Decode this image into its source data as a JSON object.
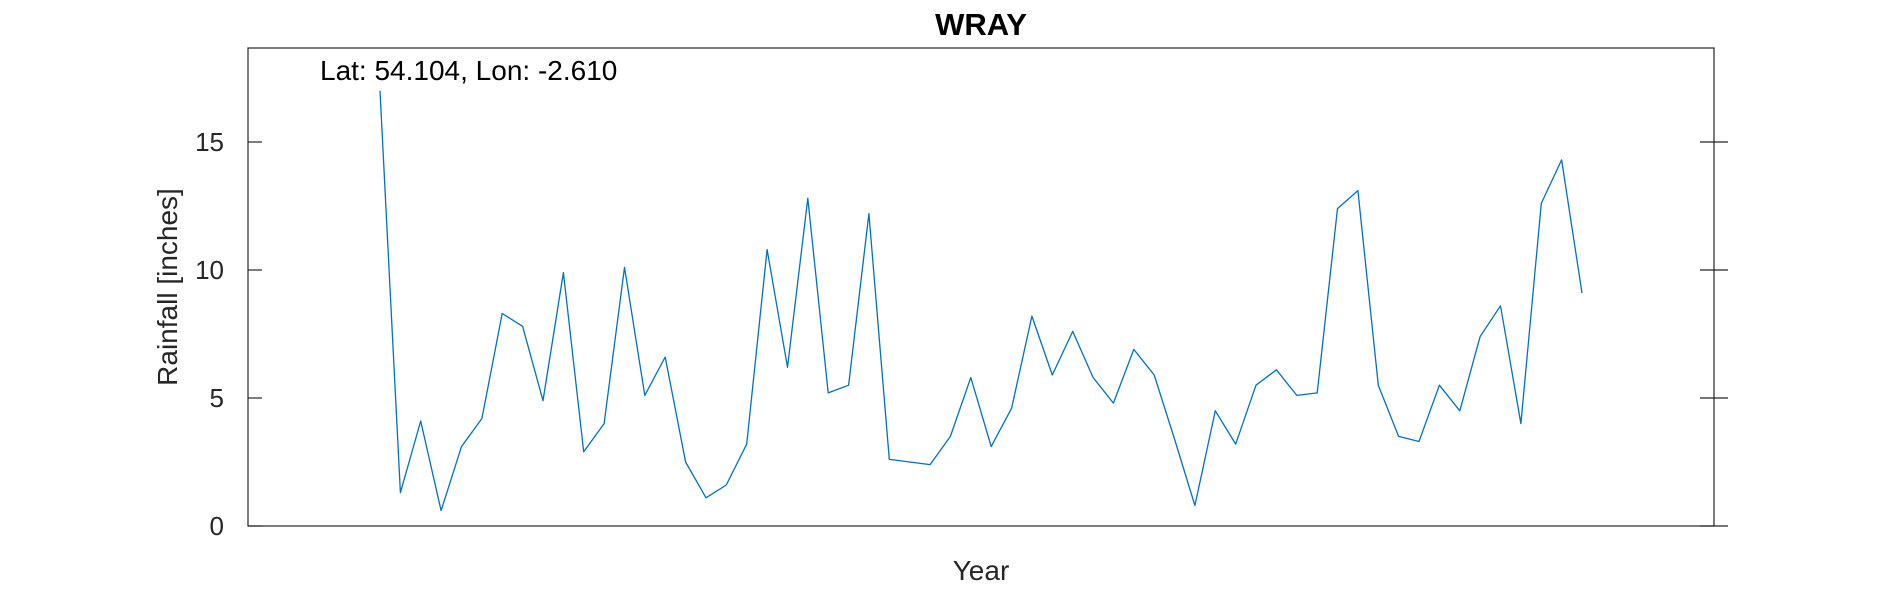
{
  "chart_data": {
    "type": "line",
    "title": "WRAY",
    "xlabel": "Year",
    "ylabel": "Rainfall [inches]",
    "annotation": "Lat: 54.104, Lon: -2.610",
    "ylim": [
      0,
      18.5
    ],
    "yticks": [
      0,
      5,
      10,
      15
    ],
    "x_tick_labels_shown": false,
    "grid": false,
    "line_color": "#0072BD",
    "series": [
      {
        "values": [
          17.0,
          1.3,
          4.1,
          0.6,
          3.1,
          4.2,
          8.3,
          7.8,
          4.9,
          9.9,
          2.9,
          4.0,
          10.1,
          5.1,
          6.6,
          2.5,
          1.1,
          1.6,
          3.2,
          10.8,
          6.2,
          12.8,
          5.2,
          5.5,
          12.2,
          2.6,
          2.5,
          2.4,
          3.5,
          5.8,
          3.1,
          4.6,
          8.2,
          5.9,
          7.6,
          5.8,
          4.8,
          6.9,
          5.9,
          3.4,
          0.8,
          4.5,
          3.2,
          5.5,
          6.1,
          5.1,
          5.2,
          12.4,
          13.1,
          5.5,
          3.5,
          3.3,
          5.5,
          4.5,
          7.4,
          8.6,
          4.0,
          12.6,
          14.3,
          9.1
        ]
      }
    ]
  }
}
